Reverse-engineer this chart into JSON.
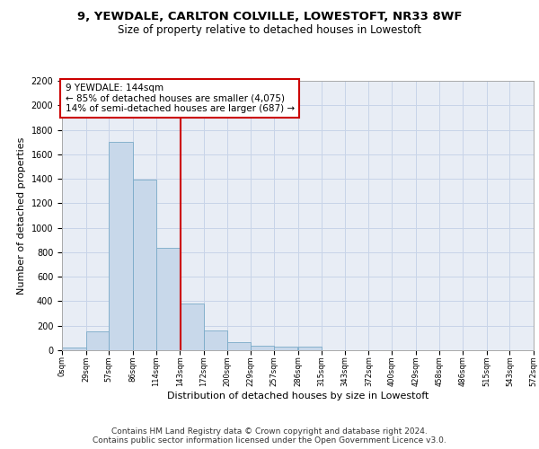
{
  "title1": "9, YEWDALE, CARLTON COLVILLE, LOWESTOFT, NR33 8WF",
  "title2": "Size of property relative to detached houses in Lowestoft",
  "xlabel": "Distribution of detached houses by size in Lowestoft",
  "ylabel": "Number of detached properties",
  "bar_edges": [
    0,
    29,
    57,
    86,
    114,
    143,
    172,
    200,
    229,
    257,
    286,
    315,
    343,
    372,
    400,
    429,
    458,
    486,
    515,
    543,
    572
  ],
  "bar_heights": [
    20,
    155,
    1700,
    1390,
    835,
    385,
    165,
    65,
    38,
    28,
    28,
    0,
    0,
    0,
    0,
    0,
    0,
    0,
    0,
    0
  ],
  "bar_color": "#c8d8ea",
  "bar_edge_color": "#7aaac8",
  "vline_x": 144,
  "vline_color": "#cc0000",
  "annotation_text": "9 YEWDALE: 144sqm\n← 85% of detached houses are smaller (4,075)\n14% of semi-detached houses are larger (687) →",
  "annotation_box_color": "white",
  "annotation_box_edge": "#cc0000",
  "ylim": [
    0,
    2200
  ],
  "yticks": [
    0,
    200,
    400,
    600,
    800,
    1000,
    1200,
    1400,
    1600,
    1800,
    2000,
    2200
  ],
  "tick_labels": [
    "0sqm",
    "29sqm",
    "57sqm",
    "86sqm",
    "114sqm",
    "143sqm",
    "172sqm",
    "200sqm",
    "229sqm",
    "257sqm",
    "286sqm",
    "315sqm",
    "343sqm",
    "372sqm",
    "400sqm",
    "429sqm",
    "458sqm",
    "486sqm",
    "515sqm",
    "543sqm",
    "572sqm"
  ],
  "grid_color": "#c8d4e8",
  "bg_color": "#e8edf5",
  "footer": "Contains HM Land Registry data © Crown copyright and database right 2024.\nContains public sector information licensed under the Open Government Licence v3.0.",
  "title1_fontsize": 9.5,
  "title2_fontsize": 8.5,
  "xlabel_fontsize": 8,
  "ylabel_fontsize": 8,
  "annotation_fontsize": 7.5,
  "footer_fontsize": 6.5
}
